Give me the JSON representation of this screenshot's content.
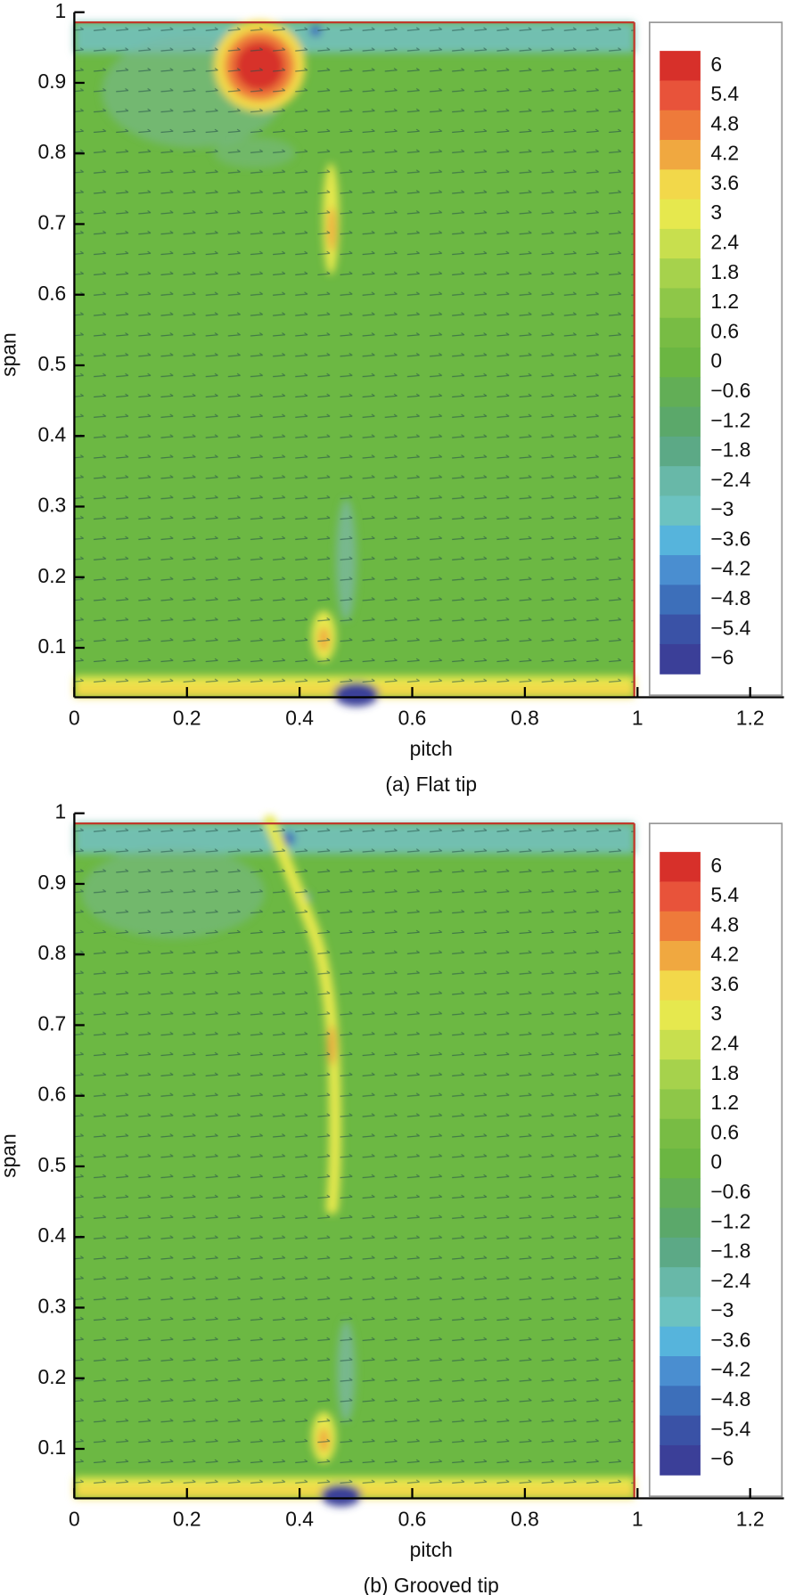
{
  "chart_data": [
    {
      "type": "contour",
      "title": "(a) Flat tip",
      "xlabel": "pitch",
      "ylabel": "span",
      "xlim": [
        0,
        1.26
      ],
      "xticks": [
        0,
        0.2,
        0.4,
        0.6,
        0.8,
        1,
        1.2
      ],
      "ylim": [
        0.03,
        1
      ],
      "yticks": [
        0.1,
        0.2,
        0.3,
        0.4,
        0.5,
        0.6,
        0.7,
        0.8,
        0.9,
        1
      ],
      "colorbar": {
        "levels": [
          6,
          5.4,
          4.8,
          4.2,
          3.6,
          3,
          2.4,
          1.8,
          1.2,
          0.6,
          0,
          {
            "value": -0.6,
            "label": "−0.6"
          },
          {
            "value": -1.2,
            "label": "−1.2"
          },
          {
            "value": -1.8,
            "label": "−1.8"
          },
          {
            "value": -2.4,
            "label": "−2.4"
          },
          {
            "value": -3,
            "label": "−3"
          },
          {
            "value": -3.6,
            "label": "−3.6"
          },
          {
            "value": -4.2,
            "label": "−4.2"
          },
          {
            "value": -4.8,
            "label": "−4.8"
          },
          {
            "value": -5.4,
            "label": "−5.4"
          },
          {
            "value": -6,
            "label": "−6"
          }
        ],
        "colors": [
          "#d7302a",
          "#e8533a",
          "#ee7a3a",
          "#f0a840",
          "#f2d84a",
          "#e6e84e",
          "#c8df4e",
          "#a6d24c",
          "#8ec748",
          "#78bc44",
          "#6bb642",
          "#62ae56",
          "#5ba86a",
          "#5ca986",
          "#68b8a8",
          "#6cc2c0",
          "#56b4dc",
          "#4a8ed0",
          "#3d6fba",
          "#3a52a6",
          "#3b3f98"
        ]
      }
    },
    {
      "type": "contour",
      "title": "(b) Grooved tip",
      "xlabel": "pitch",
      "ylabel": "span",
      "xlim": [
        0,
        1.26
      ],
      "xticks": [
        0,
        0.2,
        0.4,
        0.6,
        0.8,
        1,
        1.2
      ],
      "ylim": [
        0.03,
        1
      ],
      "yticks": [
        0.1,
        0.2,
        0.3,
        0.4,
        0.5,
        0.6,
        0.7,
        0.8,
        0.9,
        1
      ],
      "colorbar": {
        "levels": [
          6,
          5.4,
          4.8,
          4.2,
          3.6,
          3,
          2.4,
          1.8,
          1.2,
          0.6,
          0,
          {
            "value": -0.6,
            "label": "−0.6"
          },
          {
            "value": -1.2,
            "label": "−1.2"
          },
          {
            "value": -1.8,
            "label": "−1.8"
          },
          {
            "value": -2.4,
            "label": "−2.4"
          },
          {
            "value": -3,
            "label": "−3"
          },
          {
            "value": -3.6,
            "label": "−3.6"
          },
          {
            "value": -4.2,
            "label": "−4.2"
          },
          {
            "value": -4.8,
            "label": "−4.8"
          },
          {
            "value": -5.4,
            "label": "−5.4"
          },
          {
            "value": -6,
            "label": "−6"
          }
        ],
        "colors": [
          "#d7302a",
          "#e8533a",
          "#ee7a3a",
          "#f0a840",
          "#f2d84a",
          "#e6e84e",
          "#c8df4e",
          "#a6d24c",
          "#8ec748",
          "#78bc44",
          "#6bb642",
          "#62ae56",
          "#5ba86a",
          "#5ca986",
          "#68b8a8",
          "#6cc2c0",
          "#56b4dc",
          "#4a8ed0",
          "#3d6fba",
          "#3a52a6",
          "#3b3f98"
        ]
      }
    }
  ]
}
